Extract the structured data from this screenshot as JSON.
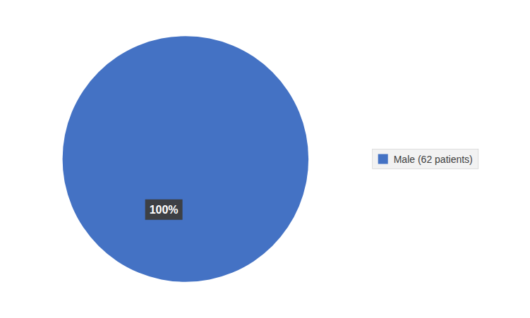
{
  "chart_data": {
    "type": "pie",
    "categories": [
      "Male (62 patients)"
    ],
    "values": [
      100
    ],
    "colors": [
      "#4472C4"
    ],
    "annotation": "100%",
    "legend": "right"
  }
}
